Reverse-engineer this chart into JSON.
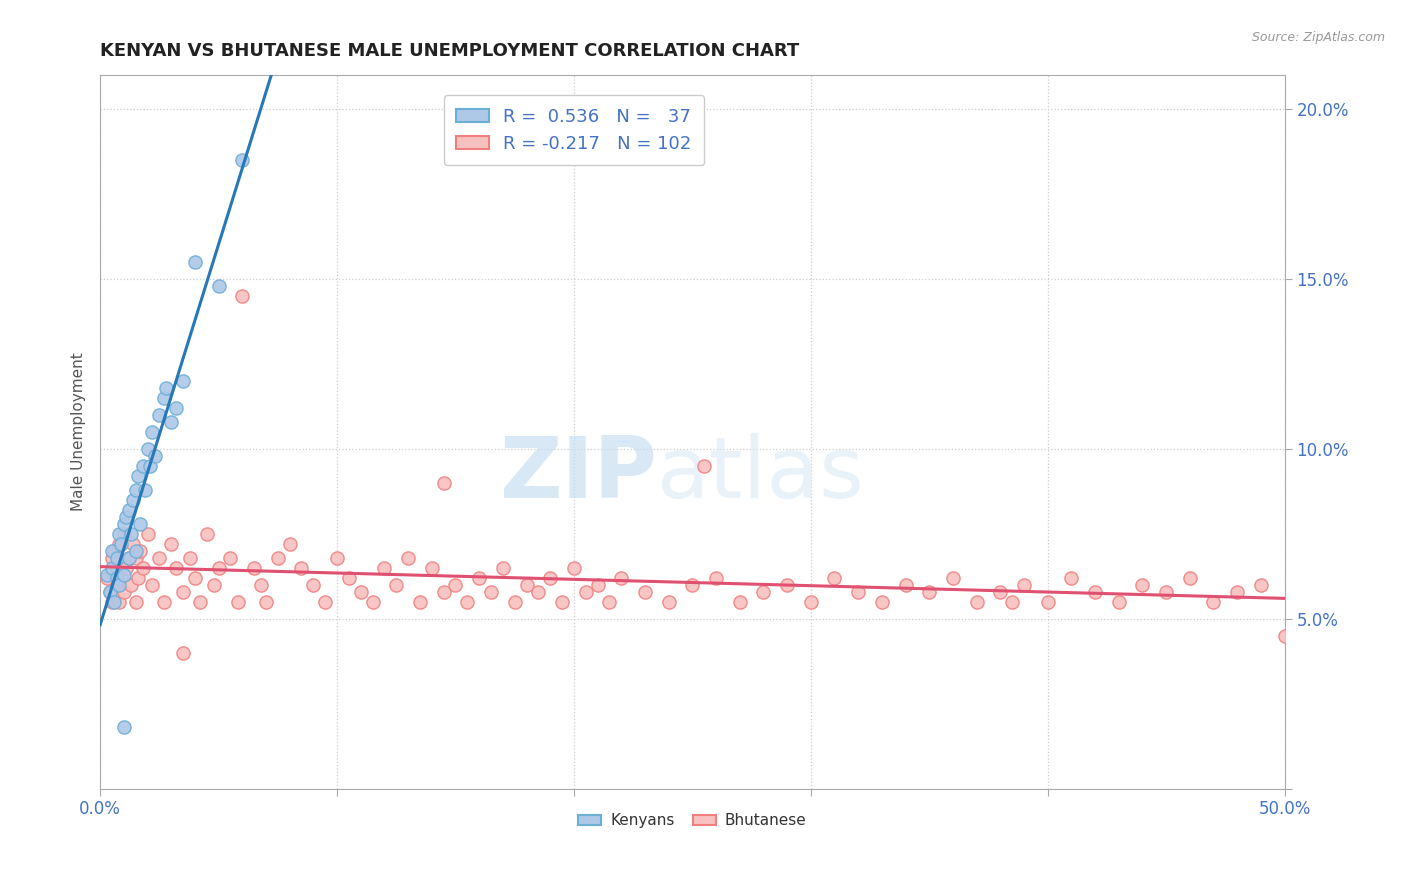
{
  "title": "KENYAN VS BHUTANESE MALE UNEMPLOYMENT CORRELATION CHART",
  "source_text": "Source: ZipAtlas.com",
  "ylabel": "Male Unemployment",
  "xlim": [
    0.0,
    0.5
  ],
  "ylim": [
    0.0,
    0.21
  ],
  "x_tick_positions": [
    0.0,
    0.1,
    0.2,
    0.3,
    0.4,
    0.5
  ],
  "x_tick_labels": [
    "0.0%",
    "",
    "",
    "",
    "",
    "50.0%"
  ],
  "y_tick_positions": [
    0.0,
    0.05,
    0.1,
    0.15,
    0.2
  ],
  "y_tick_labels": [
    "",
    "5.0%",
    "10.0%",
    "15.0%",
    "20.0%"
  ],
  "kenya_color_edge": "#6baed6",
  "kenya_color_fill": "#aec8e8",
  "bhutan_color_edge": "#f08080",
  "bhutan_color_fill": "#f9c0c0",
  "kenya_R": 0.536,
  "kenya_N": 37,
  "bhutan_R": -0.217,
  "bhutan_N": 102,
  "watermark_zip": "ZIP",
  "watermark_atlas": "atlas",
  "legend_label_kenya": "Kenyans",
  "legend_label_bhutan": "Bhutanese",
  "kenya_x": [
    0.003,
    0.004,
    0.005,
    0.005,
    0.006,
    0.007,
    0.007,
    0.008,
    0.008,
    0.009,
    0.01,
    0.01,
    0.011,
    0.012,
    0.012,
    0.013,
    0.014,
    0.015,
    0.015,
    0.016,
    0.017,
    0.018,
    0.019,
    0.02,
    0.021,
    0.022,
    0.023,
    0.025,
    0.027,
    0.028,
    0.03,
    0.032,
    0.035,
    0.04,
    0.05,
    0.06,
    0.01
  ],
  "kenya_y": [
    0.063,
    0.058,
    0.07,
    0.065,
    0.055,
    0.062,
    0.068,
    0.06,
    0.075,
    0.072,
    0.063,
    0.078,
    0.08,
    0.068,
    0.082,
    0.075,
    0.085,
    0.07,
    0.088,
    0.092,
    0.078,
    0.095,
    0.088,
    0.1,
    0.095,
    0.105,
    0.098,
    0.11,
    0.115,
    0.118,
    0.108,
    0.112,
    0.12,
    0.155,
    0.148,
    0.185,
    0.018
  ],
  "bhutan_x": [
    0.003,
    0.004,
    0.005,
    0.005,
    0.006,
    0.007,
    0.007,
    0.008,
    0.008,
    0.009,
    0.01,
    0.01,
    0.011,
    0.012,
    0.013,
    0.014,
    0.015,
    0.015,
    0.016,
    0.017,
    0.018,
    0.02,
    0.022,
    0.025,
    0.027,
    0.03,
    0.032,
    0.035,
    0.038,
    0.04,
    0.042,
    0.045,
    0.048,
    0.05,
    0.055,
    0.058,
    0.06,
    0.065,
    0.068,
    0.07,
    0.075,
    0.08,
    0.085,
    0.09,
    0.095,
    0.1,
    0.105,
    0.11,
    0.115,
    0.12,
    0.125,
    0.13,
    0.135,
    0.14,
    0.145,
    0.15,
    0.155,
    0.16,
    0.165,
    0.17,
    0.175,
    0.18,
    0.185,
    0.19,
    0.195,
    0.2,
    0.205,
    0.21,
    0.215,
    0.22,
    0.23,
    0.24,
    0.25,
    0.26,
    0.27,
    0.28,
    0.29,
    0.3,
    0.31,
    0.32,
    0.33,
    0.34,
    0.35,
    0.36,
    0.37,
    0.38,
    0.39,
    0.4,
    0.41,
    0.42,
    0.43,
    0.44,
    0.45,
    0.46,
    0.47,
    0.48,
    0.49,
    0.5,
    0.255,
    0.035,
    0.145,
    0.385
  ],
  "bhutan_y": [
    0.062,
    0.058,
    0.068,
    0.055,
    0.07,
    0.06,
    0.065,
    0.055,
    0.072,
    0.062,
    0.058,
    0.075,
    0.065,
    0.068,
    0.06,
    0.072,
    0.055,
    0.068,
    0.062,
    0.07,
    0.065,
    0.075,
    0.06,
    0.068,
    0.055,
    0.072,
    0.065,
    0.058,
    0.068,
    0.062,
    0.055,
    0.075,
    0.06,
    0.065,
    0.068,
    0.055,
    0.145,
    0.065,
    0.06,
    0.055,
    0.068,
    0.072,
    0.065,
    0.06,
    0.055,
    0.068,
    0.062,
    0.058,
    0.055,
    0.065,
    0.06,
    0.068,
    0.055,
    0.065,
    0.058,
    0.06,
    0.055,
    0.062,
    0.058,
    0.065,
    0.055,
    0.06,
    0.058,
    0.062,
    0.055,
    0.065,
    0.058,
    0.06,
    0.055,
    0.062,
    0.058,
    0.055,
    0.06,
    0.062,
    0.055,
    0.058,
    0.06,
    0.055,
    0.062,
    0.058,
    0.055,
    0.06,
    0.058,
    0.062,
    0.055,
    0.058,
    0.06,
    0.055,
    0.062,
    0.058,
    0.055,
    0.06,
    0.058,
    0.062,
    0.055,
    0.058,
    0.06,
    0.045,
    0.095,
    0.04,
    0.09,
    0.055
  ]
}
